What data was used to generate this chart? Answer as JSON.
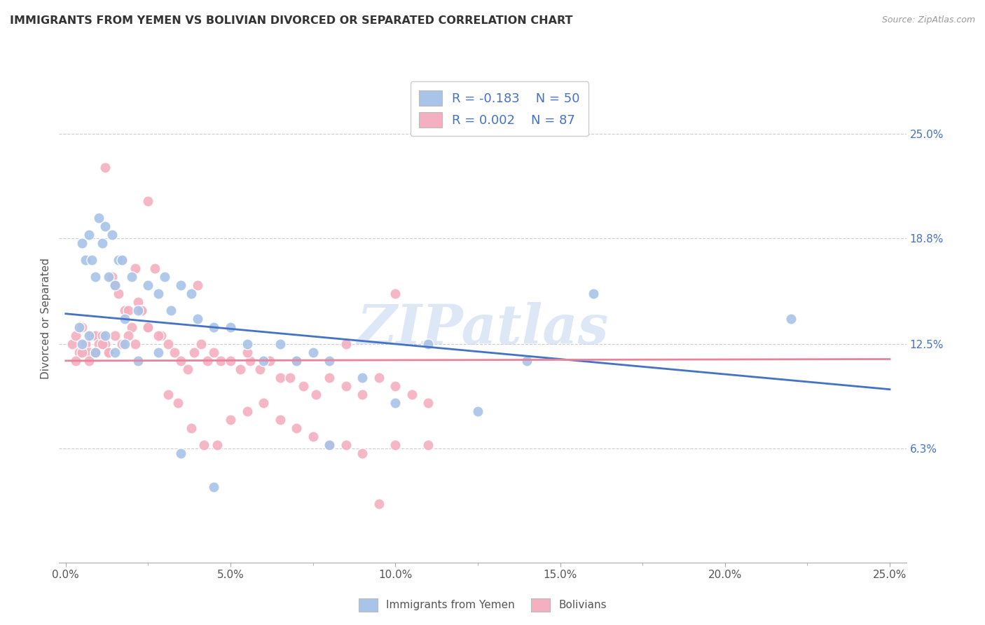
{
  "title": "IMMIGRANTS FROM YEMEN VS BOLIVIAN DIVORCED OR SEPARATED CORRELATION CHART",
  "source": "Source: ZipAtlas.com",
  "ylabel": "Divorced or Separated",
  "x_tick_labels": [
    "0.0%",
    "5.0%",
    "10.0%",
    "15.0%",
    "20.0%",
    "25.0%"
  ],
  "x_ticks": [
    0.0,
    0.05,
    0.1,
    0.15,
    0.2,
    0.25
  ],
  "y_tick_labels_right": [
    "25.0%",
    "18.8%",
    "12.5%",
    "6.3%"
  ],
  "y_ticks_right": [
    0.25,
    0.188,
    0.125,
    0.063
  ],
  "xlim": [
    -0.002,
    0.255
  ],
  "ylim": [
    -0.005,
    0.285
  ],
  "legend_labels": [
    "Immigrants from Yemen",
    "Bolivians"
  ],
  "legend_R": [
    "R = -0.183",
    "R = 0.002"
  ],
  "legend_N": [
    "N = 50",
    "N = 87"
  ],
  "color_blue": "#a8c4e8",
  "color_pink": "#f4afc0",
  "line_blue": "#4472c4",
  "line_pink": "#e8849a",
  "text_color_blue": "#4472c4",
  "watermark": "ZIPatlas",
  "blue_line_start_y": 0.143,
  "blue_line_end_y": 0.098,
  "pink_line_y": 0.115,
  "scatter_blue_x": [
    0.004,
    0.005,
    0.006,
    0.007,
    0.008,
    0.009,
    0.01,
    0.011,
    0.012,
    0.013,
    0.014,
    0.015,
    0.016,
    0.017,
    0.018,
    0.02,
    0.022,
    0.025,
    0.028,
    0.03,
    0.032,
    0.035,
    0.038,
    0.04,
    0.045,
    0.05,
    0.055,
    0.06,
    0.065,
    0.07,
    0.075,
    0.08,
    0.09,
    0.1,
    0.11,
    0.125,
    0.14,
    0.16,
    0.22,
    0.08,
    0.005,
    0.007,
    0.009,
    0.012,
    0.015,
    0.018,
    0.022,
    0.028,
    0.035,
    0.045
  ],
  "scatter_blue_y": [
    0.135,
    0.185,
    0.175,
    0.19,
    0.175,
    0.165,
    0.2,
    0.185,
    0.195,
    0.165,
    0.19,
    0.16,
    0.175,
    0.175,
    0.14,
    0.165,
    0.145,
    0.16,
    0.155,
    0.165,
    0.145,
    0.16,
    0.155,
    0.14,
    0.135,
    0.135,
    0.125,
    0.115,
    0.125,
    0.115,
    0.12,
    0.115,
    0.105,
    0.09,
    0.125,
    0.085,
    0.115,
    0.155,
    0.14,
    0.065,
    0.125,
    0.13,
    0.12,
    0.13,
    0.12,
    0.125,
    0.115,
    0.12,
    0.06,
    0.04
  ],
  "scatter_pink_x": [
    0.002,
    0.003,
    0.004,
    0.005,
    0.006,
    0.007,
    0.008,
    0.009,
    0.01,
    0.011,
    0.012,
    0.013,
    0.014,
    0.015,
    0.016,
    0.017,
    0.018,
    0.019,
    0.02,
    0.021,
    0.022,
    0.023,
    0.025,
    0.027,
    0.029,
    0.031,
    0.033,
    0.035,
    0.037,
    0.039,
    0.041,
    0.043,
    0.045,
    0.047,
    0.05,
    0.053,
    0.056,
    0.059,
    0.062,
    0.065,
    0.068,
    0.072,
    0.076,
    0.08,
    0.085,
    0.09,
    0.095,
    0.1,
    0.105,
    0.11,
    0.003,
    0.005,
    0.007,
    0.009,
    0.011,
    0.013,
    0.015,
    0.017,
    0.019,
    0.021,
    0.023,
    0.025,
    0.028,
    0.031,
    0.034,
    0.038,
    0.042,
    0.046,
    0.05,
    0.055,
    0.06,
    0.065,
    0.07,
    0.075,
    0.08,
    0.085,
    0.09,
    0.095,
    0.1,
    0.11,
    0.012,
    0.025,
    0.04,
    0.055,
    0.07,
    0.085,
    0.1
  ],
  "scatter_pink_y": [
    0.125,
    0.13,
    0.12,
    0.135,
    0.125,
    0.12,
    0.13,
    0.13,
    0.125,
    0.13,
    0.125,
    0.12,
    0.165,
    0.16,
    0.155,
    0.175,
    0.145,
    0.145,
    0.135,
    0.17,
    0.15,
    0.145,
    0.135,
    0.17,
    0.13,
    0.125,
    0.12,
    0.115,
    0.11,
    0.12,
    0.125,
    0.115,
    0.12,
    0.115,
    0.115,
    0.11,
    0.115,
    0.11,
    0.115,
    0.105,
    0.105,
    0.1,
    0.095,
    0.105,
    0.1,
    0.095,
    0.105,
    0.1,
    0.095,
    0.09,
    0.115,
    0.12,
    0.115,
    0.12,
    0.125,
    0.12,
    0.13,
    0.125,
    0.13,
    0.125,
    0.145,
    0.135,
    0.13,
    0.095,
    0.09,
    0.075,
    0.065,
    0.065,
    0.08,
    0.085,
    0.09,
    0.08,
    0.075,
    0.07,
    0.065,
    0.065,
    0.06,
    0.03,
    0.065,
    0.065,
    0.23,
    0.21,
    0.16,
    0.12,
    0.115,
    0.125,
    0.155
  ]
}
